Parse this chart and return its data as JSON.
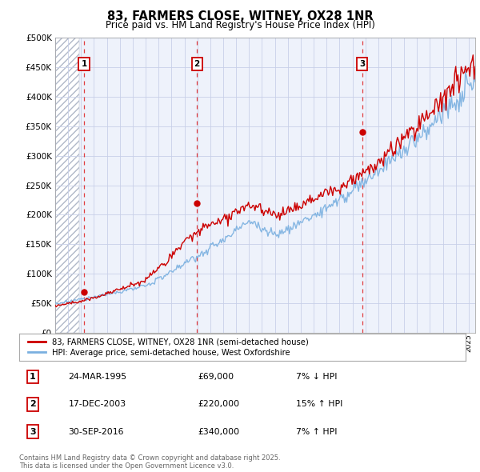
{
  "title": "83, FARMERS CLOSE, WITNEY, OX28 1NR",
  "subtitle": "Price paid vs. HM Land Registry's House Price Index (HPI)",
  "ylim": [
    0,
    500000
  ],
  "yticks": [
    0,
    50000,
    100000,
    150000,
    200000,
    250000,
    300000,
    350000,
    400000,
    450000,
    500000
  ],
  "ytick_labels": [
    "£0",
    "£50K",
    "£100K",
    "£150K",
    "£200K",
    "£250K",
    "£300K",
    "£350K",
    "£400K",
    "£450K",
    "£500K"
  ],
  "xlim_start": 1993.0,
  "xlim_end": 2025.5,
  "sale_dates": [
    1995.23,
    2003.96,
    2016.75
  ],
  "sale_prices": [
    69000,
    220000,
    340000
  ],
  "sale_labels": [
    "1",
    "2",
    "3"
  ],
  "vline_color": "#dd0000",
  "property_line_color": "#cc0000",
  "hpi_line_color": "#7ab0e0",
  "legend_property": "83, FARMERS CLOSE, WITNEY, OX28 1NR (semi-detached house)",
  "legend_hpi": "HPI: Average price, semi-detached house, West Oxfordshire",
  "table_entries": [
    {
      "num": "1",
      "date": "24-MAR-1995",
      "price": "£69,000",
      "change": "7% ↓ HPI"
    },
    {
      "num": "2",
      "date": "17-DEC-2003",
      "price": "£220,000",
      "change": "15% ↑ HPI"
    },
    {
      "num": "3",
      "date": "30-SEP-2016",
      "price": "£340,000",
      "change": "7% ↑ HPI"
    }
  ],
  "footer": "Contains HM Land Registry data © Crown copyright and database right 2025.\nThis data is licensed under the Open Government Licence v3.0.",
  "bg_color": "#eef2fb",
  "grid_color": "#c8d0e8"
}
